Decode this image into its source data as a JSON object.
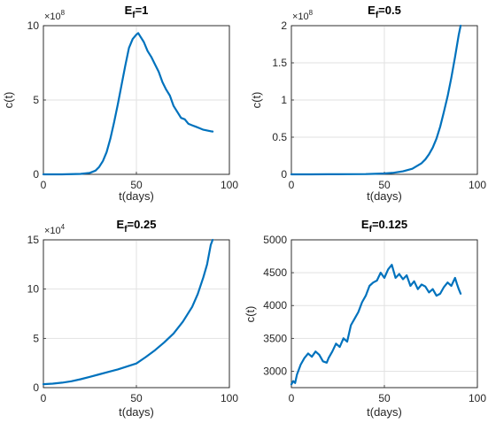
{
  "colors": {
    "series": "#0072BD",
    "axis": "#262626",
    "grid": "#e2e2e2"
  },
  "chart_data": [
    {
      "type": "line",
      "title_main": "E",
      "title_sub": "f",
      "title_rest": "=1",
      "xlabel": "t(days)",
      "ylabel": "c(t)",
      "xlim": [
        0,
        100
      ],
      "ylim": [
        0,
        1000000000
      ],
      "xticks": [
        "0",
        "50",
        "100"
      ],
      "yticks": [
        "0",
        "5",
        "10"
      ],
      "exponent": {
        "base": "×10",
        "power": "8"
      },
      "grid": true,
      "x": [
        0,
        10,
        20,
        25,
        28,
        30,
        32,
        34,
        36,
        38,
        40,
        42,
        44,
        46,
        48,
        50,
        51,
        52,
        54,
        56,
        58,
        60,
        62,
        64,
        66,
        68,
        70,
        72,
        74,
        76,
        78,
        80,
        82,
        84,
        86,
        88,
        90,
        91
      ],
      "y": [
        0,
        0,
        3000000,
        10000000,
        25000000,
        50000000,
        90000000,
        150000000,
        240000000,
        350000000,
        470000000,
        600000000,
        730000000,
        850000000,
        910000000,
        940000000,
        950000000,
        930000000,
        890000000,
        830000000,
        790000000,
        740000000,
        690000000,
        620000000,
        570000000,
        530000000,
        460000000,
        420000000,
        380000000,
        370000000,
        340000000,
        330000000,
        320000000,
        310000000,
        300000000,
        295000000,
        290000000,
        288000000
      ]
    },
    {
      "type": "line",
      "title_main": "E",
      "title_sub": "f",
      "title_rest": "=0.5",
      "xlabel": "t(days)",
      "ylabel": "c(t)",
      "xlim": [
        0,
        100
      ],
      "ylim": [
        0,
        200000000
      ],
      "xticks": [
        "0",
        "50",
        "100"
      ],
      "yticks": [
        "0",
        "0.5",
        "1",
        "1.5",
        "2"
      ],
      "exponent": {
        "base": "×10",
        "power": "8"
      },
      "grid": true,
      "x": [
        0,
        10,
        20,
        30,
        40,
        45,
        50,
        55,
        60,
        65,
        70,
        72,
        74,
        76,
        78,
        80,
        82,
        84,
        86,
        88,
        90,
        91
      ],
      "y": [
        0,
        50000,
        100000,
        200000,
        400000,
        700000,
        1200000,
        2200000,
        4000000,
        7500000,
        15000000,
        20000000,
        27000000,
        36000000,
        48000000,
        64000000,
        84000000,
        105000000,
        130000000,
        158000000,
        188000000,
        200000000
      ]
    },
    {
      "type": "line",
      "title_main": "E",
      "title_sub": "f",
      "title_rest": "=0.25",
      "xlabel": "t(days)",
      "ylabel": "",
      "xlim": [
        0,
        100
      ],
      "ylim": [
        0,
        150000
      ],
      "xticks": [
        "0",
        "50",
        "100"
      ],
      "yticks": [
        "0",
        "5",
        "10",
        "15"
      ],
      "exponent": {
        "base": "×10",
        "power": "4"
      },
      "grid": true,
      "x": [
        0,
        5,
        10,
        15,
        20,
        25,
        30,
        35,
        40,
        45,
        50,
        55,
        60,
        65,
        70,
        75,
        80,
        83,
        86,
        88,
        90,
        91
      ],
      "y": [
        3500,
        4000,
        5000,
        6500,
        8500,
        11000,
        13500,
        16000,
        18500,
        21500,
        24500,
        31000,
        38000,
        46000,
        55000,
        67000,
        82000,
        95000,
        112000,
        125000,
        145000,
        150000
      ]
    },
    {
      "type": "line",
      "title_main": "E",
      "title_sub": "f",
      "title_rest": "=0.125",
      "xlabel": "t(days)",
      "ylabel": "c(t)",
      "xlim": [
        0,
        100
      ],
      "ylim": [
        2750,
        5000
      ],
      "xticks": [
        "0",
        "50",
        "100"
      ],
      "yticks": [
        "3000",
        "3500",
        "4000",
        "4500",
        "5000"
      ],
      "grid": true,
      "x": [
        0,
        1,
        2,
        3,
        5,
        7,
        9,
        11,
        13,
        15,
        17,
        19,
        20,
        22,
        24,
        26,
        28,
        30,
        32,
        34,
        36,
        38,
        40,
        42,
        44,
        46,
        48,
        50,
        52,
        54,
        56,
        58,
        60,
        62,
        64,
        66,
        68,
        70,
        72,
        74,
        76,
        78,
        80,
        82,
        84,
        86,
        88,
        89,
        90,
        91
      ],
      "y": [
        2800,
        2850,
        2820,
        2950,
        3100,
        3200,
        3270,
        3220,
        3300,
        3250,
        3150,
        3130,
        3200,
        3300,
        3420,
        3370,
        3500,
        3450,
        3700,
        3800,
        3900,
        4050,
        4150,
        4300,
        4350,
        4380,
        4500,
        4420,
        4550,
        4620,
        4420,
        4480,
        4400,
        4460,
        4300,
        4370,
        4250,
        4320,
        4290,
        4200,
        4250,
        4150,
        4180,
        4280,
        4350,
        4300,
        4420,
        4330,
        4250,
        4180
      ]
    }
  ]
}
